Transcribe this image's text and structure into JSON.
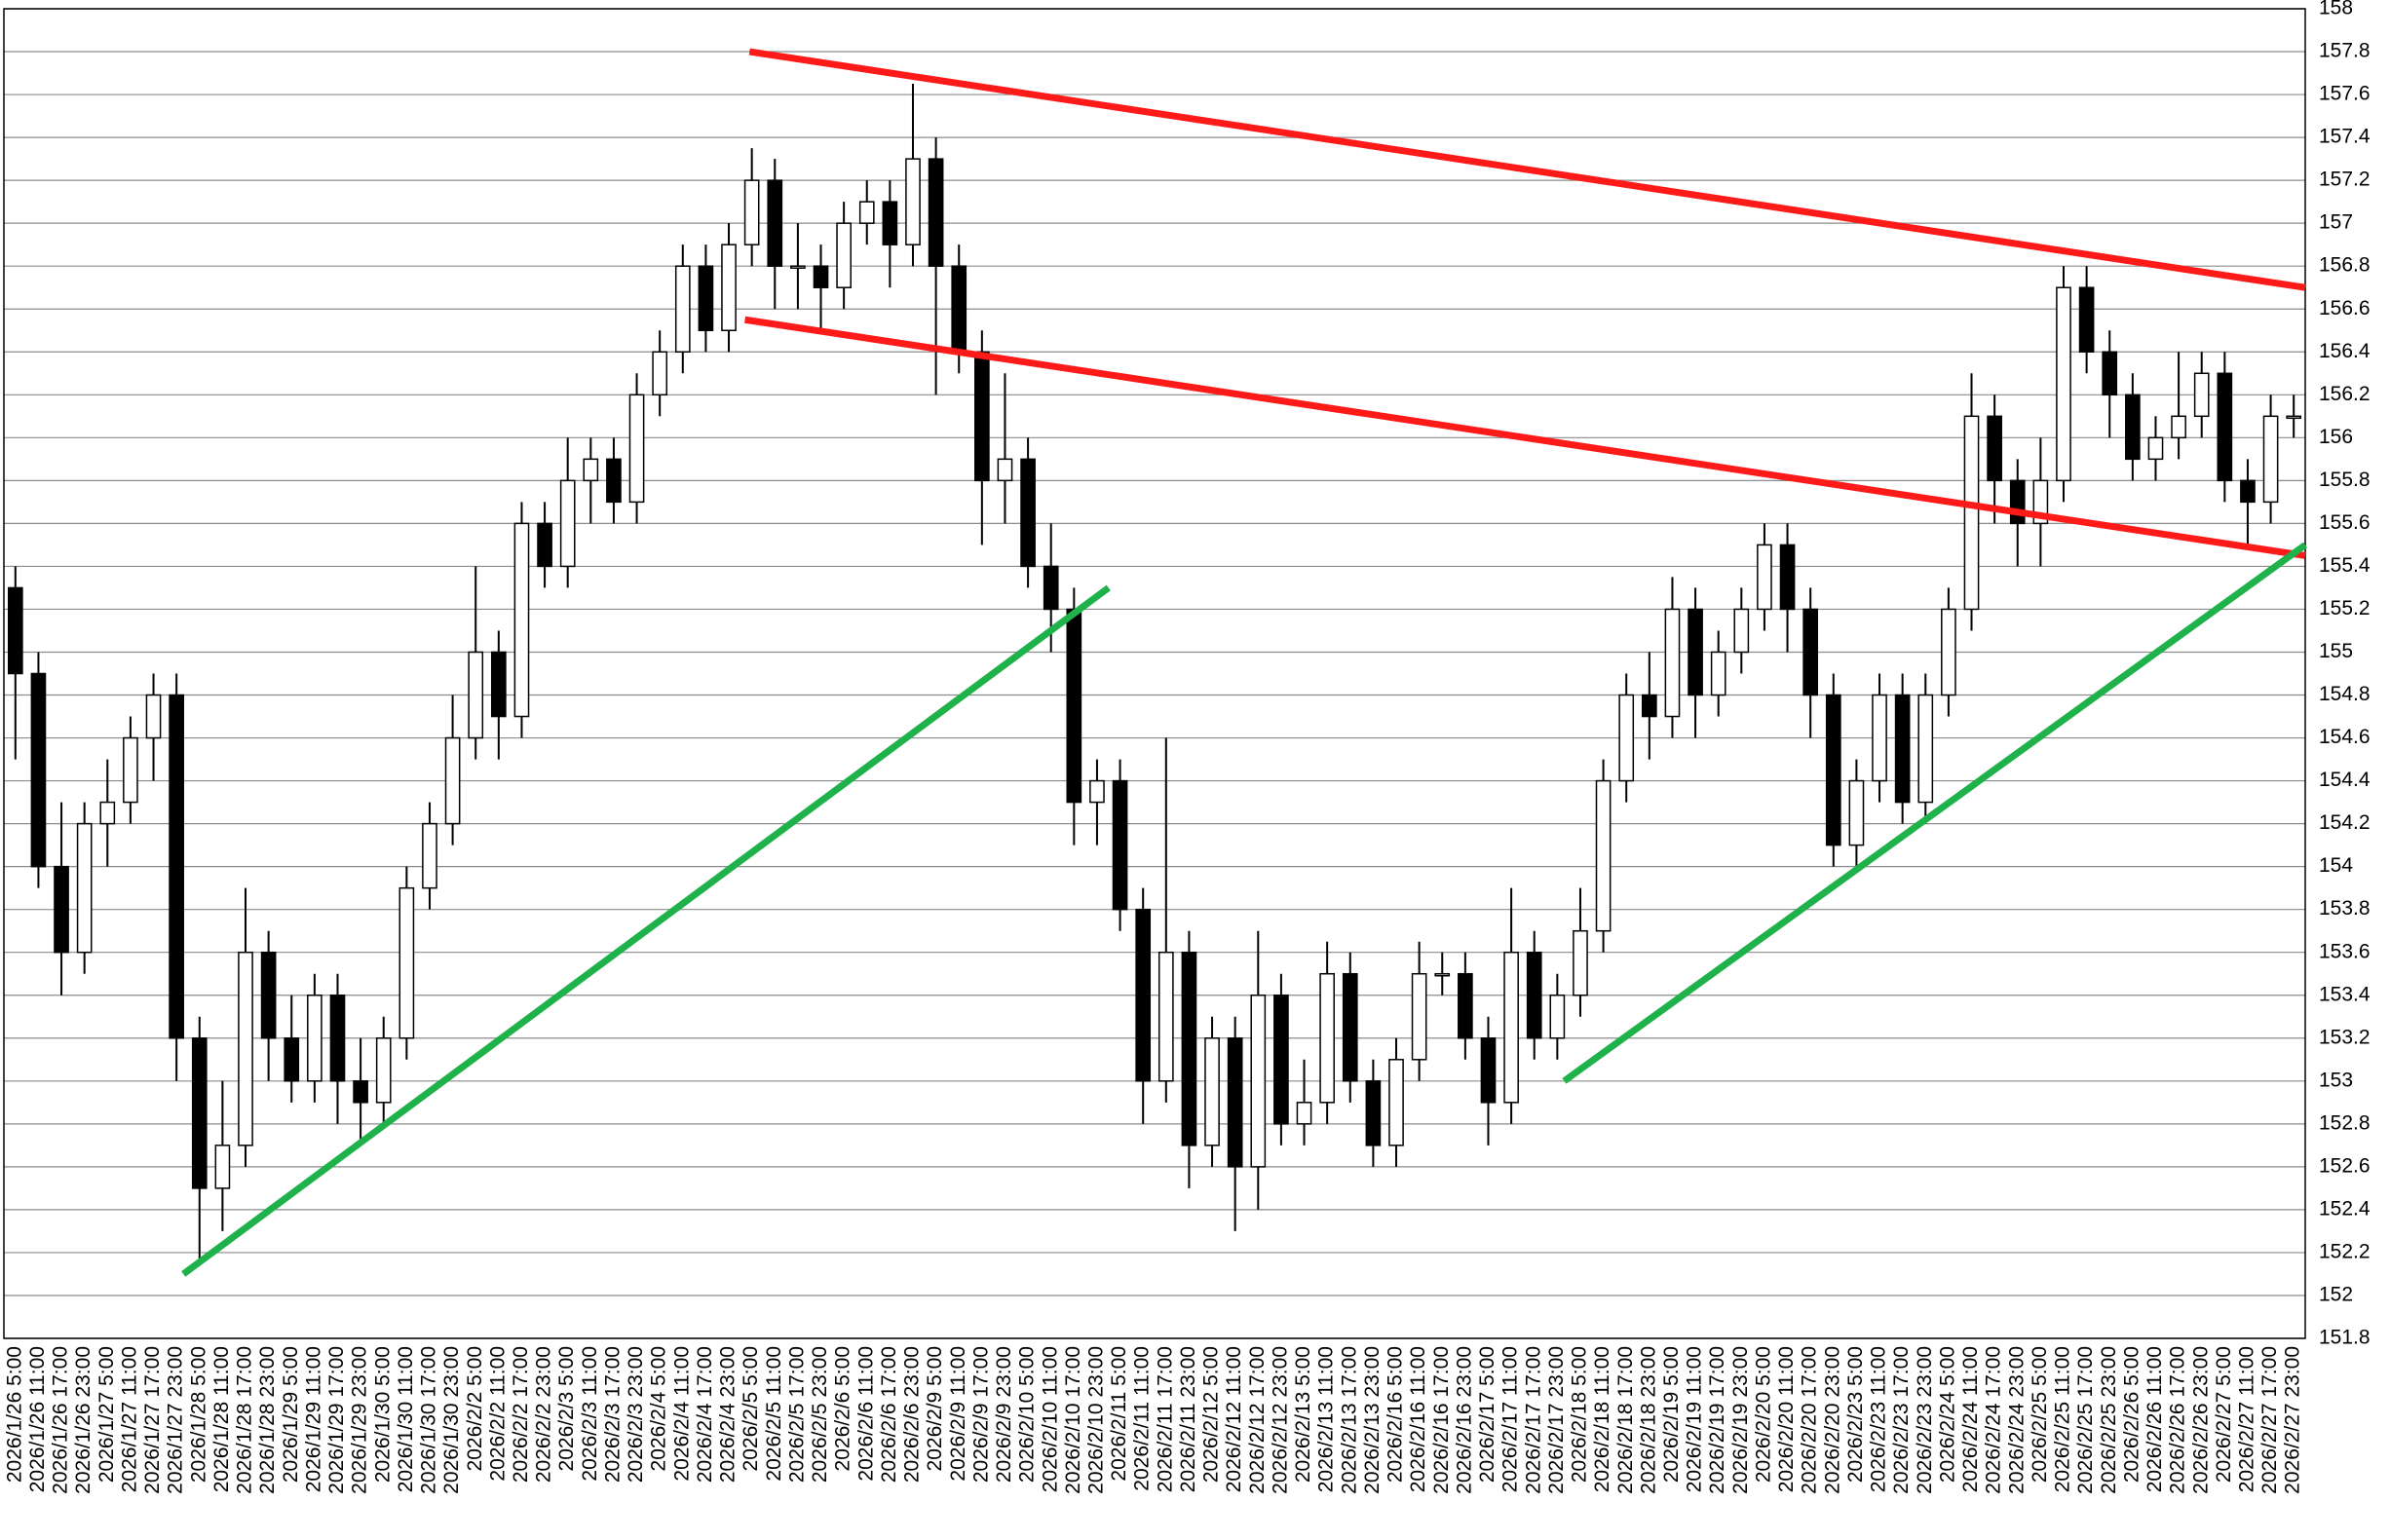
{
  "chart_data": {
    "type": "candlestick",
    "categories": [
      "2026/1/26 5:00",
      "2026/1/26 11:00",
      "2026/1/26 17:00",
      "2026/1/26 23:00",
      "2026/1/27 5:00",
      "2026/1/27 11:00",
      "2026/1/27 17:00",
      "2026/1/27 23:00",
      "2026/1/28 5:00",
      "2026/1/28 11:00",
      "2026/1/28 17:00",
      "2026/1/28 23:00",
      "2026/1/29 5:00",
      "2026/1/29 11:00",
      "2026/1/29 17:00",
      "2026/1/29 23:00",
      "2026/1/30 5:00",
      "2026/1/30 11:00",
      "2026/1/30 17:00",
      "2026/1/30 23:00",
      "2026/2/2 5:00",
      "2026/2/2 11:00",
      "2026/2/2 17:00",
      "2026/2/2 23:00",
      "2026/2/3 5:00",
      "2026/2/3 11:00",
      "2026/2/3 17:00",
      "2026/2/3 23:00",
      "2026/2/4 5:00",
      "2026/2/4 11:00",
      "2026/2/4 17:00",
      "2026/2/4 23:00",
      "2026/2/5 5:00",
      "2026/2/5 11:00",
      "2026/2/5 17:00",
      "2026/2/5 23:00",
      "2026/2/6 5:00",
      "2026/2/6 11:00",
      "2026/2/6 17:00",
      "2026/2/6 23:00",
      "2026/2/9 5:00",
      "2026/2/9 11:00",
      "2026/2/9 17:00",
      "2026/2/9 23:00",
      "2026/2/10 5:00",
      "2026/2/10 11:00",
      "2026/2/10 17:00",
      "2026/2/10 23:00",
      "2026/2/11 5:00",
      "2026/2/11 11:00",
      "2026/2/11 17:00",
      "2026/2/11 23:00",
      "2026/2/12 5:00",
      "2026/2/12 11:00",
      "2026/2/12 17:00",
      "2026/2/12 23:00",
      "2026/2/13 5:00",
      "2026/2/13 11:00",
      "2026/2/13 17:00",
      "2026/2/13 23:00",
      "2026/2/16 5:00",
      "2026/2/16 11:00",
      "2026/2/16 17:00",
      "2026/2/16 23:00",
      "2026/2/17 5:00",
      "2026/2/17 11:00",
      "2026/2/17 17:00",
      "2026/2/17 23:00",
      "2026/2/18 5:00",
      "2026/2/18 11:00",
      "2026/2/18 17:00",
      "2026/2/18 23:00",
      "2026/2/19 5:00",
      "2026/2/19 11:00",
      "2026/2/19 17:00",
      "2026/2/19 23:00",
      "2026/2/20 5:00",
      "2026/2/20 11:00",
      "2026/2/20 17:00",
      "2026/2/20 23:00",
      "2026/2/23 5:00",
      "2026/2/23 11:00",
      "2026/2/23 17:00",
      "2026/2/23 23:00",
      "2026/2/24 5:00",
      "2026/2/24 11:00",
      "2026/2/24 17:00",
      "2026/2/24 23:00",
      "2026/2/25 5:00",
      "2026/2/25 11:00",
      "2026/2/25 17:00",
      "2026/2/25 23:00",
      "2026/2/26 5:00",
      "2026/2/26 11:00",
      "2026/2/26 17:00",
      "2026/2/26 23:00",
      "2026/2/27 5:00",
      "2026/2/27 11:00",
      "2026/2/27 17:00",
      "2026/2/27 23:00"
    ],
    "open": [
      155.3,
      154.9,
      154.0,
      153.6,
      154.2,
      154.3,
      154.6,
      154.8,
      153.2,
      152.5,
      152.7,
      153.6,
      153.2,
      153.0,
      153.4,
      153.0,
      152.9,
      153.2,
      153.9,
      154.2,
      154.6,
      155.0,
      154.7,
      155.6,
      155.4,
      155.8,
      155.9,
      155.7,
      156.2,
      156.4,
      156.8,
      156.5,
      156.9,
      157.2,
      156.8,
      156.8,
      156.7,
      157.0,
      157.1,
      156.9,
      157.3,
      156.8,
      156.4,
      155.8,
      155.9,
      155.4,
      155.2,
      154.3,
      154.4,
      153.8,
      153.0,
      153.6,
      152.7,
      153.2,
      152.6,
      153.4,
      152.8,
      152.9,
      153.5,
      153.0,
      152.7,
      153.1,
      153.5,
      153.5,
      153.2,
      152.9,
      153.6,
      153.2,
      153.4,
      153.7,
      154.4,
      154.8,
      154.7,
      155.2,
      154.8,
      155.0,
      155.2,
      155.5,
      155.2,
      154.8,
      154.1,
      154.4,
      154.8,
      154.3,
      154.8,
      155.2,
      156.1,
      155.8,
      155.6,
      155.8,
      156.7,
      156.4,
      156.2,
      155.9,
      156.0,
      156.1,
      156.3,
      155.8,
      155.7,
      156.1
    ],
    "high": [
      155.4,
      155.0,
      154.3,
      154.3,
      154.5,
      154.7,
      154.9,
      154.9,
      153.3,
      153.0,
      153.9,
      153.7,
      153.4,
      153.5,
      153.5,
      153.2,
      153.3,
      154.0,
      154.3,
      154.8,
      155.4,
      155.1,
      155.7,
      155.7,
      156.0,
      156.0,
      156.0,
      156.3,
      156.5,
      156.9,
      156.9,
      157.0,
      157.35,
      157.3,
      157.0,
      156.9,
      157.1,
      157.2,
      157.2,
      157.65,
      157.4,
      156.9,
      156.5,
      156.3,
      156.0,
      155.6,
      155.3,
      154.5,
      154.5,
      153.9,
      154.6,
      153.7,
      153.3,
      153.3,
      153.7,
      153.5,
      153.1,
      153.65,
      153.6,
      153.1,
      153.2,
      153.65,
      153.6,
      153.6,
      153.3,
      153.9,
      153.7,
      153.5,
      153.9,
      154.5,
      154.9,
      155.0,
      155.35,
      155.3,
      155.1,
      155.3,
      155.6,
      155.6,
      155.3,
      154.9,
      154.5,
      154.9,
      154.9,
      154.9,
      155.3,
      156.3,
      156.2,
      155.9,
      156.0,
      156.8,
      156.8,
      156.5,
      156.3,
      156.1,
      156.4,
      156.4,
      156.4,
      155.9,
      156.2,
      156.2
    ],
    "low": [
      154.5,
      153.9,
      153.4,
      153.5,
      154.0,
      154.2,
      154.4,
      153.0,
      152.15,
      152.3,
      152.6,
      153.0,
      152.9,
      152.9,
      152.8,
      152.7,
      152.8,
      153.1,
      153.8,
      154.1,
      154.5,
      154.5,
      154.6,
      155.3,
      155.3,
      155.6,
      155.6,
      155.6,
      156.1,
      156.3,
      156.4,
      156.4,
      156.8,
      156.6,
      156.6,
      156.5,
      156.6,
      156.9,
      156.7,
      156.8,
      156.2,
      156.3,
      155.5,
      155.6,
      155.3,
      155.0,
      154.1,
      154.1,
      153.7,
      152.8,
      152.9,
      152.5,
      152.6,
      152.3,
      152.4,
      152.7,
      152.7,
      152.8,
      152.9,
      152.6,
      152.6,
      153.0,
      153.4,
      153.1,
      152.7,
      152.8,
      153.1,
      153.1,
      153.3,
      153.6,
      154.3,
      154.5,
      154.6,
      154.6,
      154.7,
      154.9,
      155.1,
      155.0,
      154.6,
      154.0,
      154.0,
      154.3,
      154.2,
      154.2,
      154.7,
      155.1,
      155.6,
      155.4,
      155.4,
      155.7,
      156.3,
      156.0,
      155.8,
      155.8,
      155.9,
      156.0,
      155.7,
      155.5,
      155.6,
      156.0
    ],
    "close": [
      154.9,
      154.0,
      153.6,
      154.2,
      154.3,
      154.6,
      154.8,
      153.2,
      152.5,
      152.7,
      153.6,
      153.2,
      153.0,
      153.4,
      153.0,
      152.9,
      153.2,
      153.9,
      154.2,
      154.6,
      155.0,
      154.7,
      155.6,
      155.4,
      155.8,
      155.9,
      155.7,
      156.2,
      156.4,
      156.8,
      156.5,
      156.9,
      157.2,
      156.8,
      156.8,
      156.7,
      157.0,
      157.1,
      156.9,
      157.3,
      156.8,
      156.4,
      155.8,
      155.9,
      155.4,
      155.2,
      154.3,
      154.4,
      153.8,
      153.0,
      153.6,
      152.7,
      153.2,
      152.6,
      153.4,
      152.8,
      152.9,
      153.5,
      153.0,
      152.7,
      153.1,
      153.5,
      153.5,
      153.2,
      152.9,
      153.6,
      153.2,
      153.4,
      153.7,
      154.4,
      154.8,
      154.7,
      155.2,
      154.8,
      155.0,
      155.2,
      155.5,
      155.2,
      154.8,
      154.1,
      154.4,
      154.8,
      154.3,
      154.8,
      155.2,
      156.1,
      155.8,
      155.6,
      155.8,
      156.7,
      156.4,
      156.2,
      155.9,
      156.0,
      156.1,
      156.3,
      155.8,
      155.7,
      156.1,
      156.1
    ],
    "up_color": "#ffffff",
    "down_color": "#000000",
    "ylim": [
      151.8,
      158
    ],
    "yticks": [
      151.8,
      152,
      152.2,
      152.4,
      152.6,
      152.8,
      153,
      153.2,
      153.4,
      153.6,
      153.8,
      154,
      154.2,
      154.4,
      154.6,
      154.8,
      155,
      155.2,
      155.4,
      155.6,
      155.8,
      156,
      156.2,
      156.4,
      156.6,
      156.8,
      157,
      157.2,
      157.4,
      157.6,
      157.8,
      158
    ],
    "grid": true,
    "trendlines": [
      {
        "color": "#ff1a1a",
        "x": [
          32.4,
          100
        ],
        "y": [
          157.8,
          156.7
        ]
      },
      {
        "color": "#ff1a1a",
        "x": [
          32.2,
          100
        ],
        "y": [
          156.55,
          155.45
        ]
      },
      {
        "color": "#1fb14a",
        "x": [
          7.8,
          48
        ],
        "y": [
          152.1,
          155.3
        ]
      },
      {
        "color": "#1fb14a",
        "x": [
          67.8,
          100
        ],
        "y": [
          153.0,
          155.5
        ]
      }
    ]
  }
}
